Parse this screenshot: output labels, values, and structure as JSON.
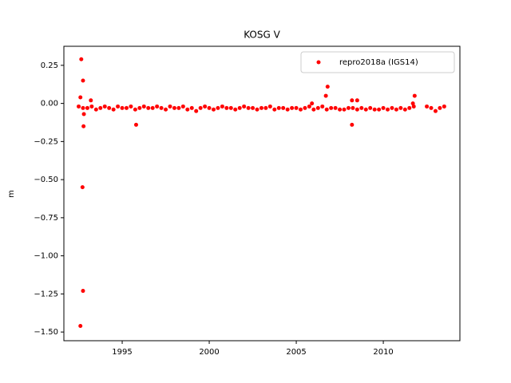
{
  "chart_data": {
    "type": "scatter",
    "title": "KOSG V",
    "y_label": "m",
    "xlim": [
      1991.65,
      2014.4
    ],
    "ylim": [
      -1.557,
      0.375
    ],
    "xticks": [
      1995,
      2000,
      2005,
      2010
    ],
    "yticks": [
      0.25,
      {
        "value": 0,
        "label": "0.00"
      },
      {
        "value": -0.25,
        "label": "−0.25"
      },
      {
        "value": -0.5,
        "label": "−0.50"
      },
      {
        "value": -0.75,
        "label": "−0.75"
      },
      {
        "value": -1,
        "label": "−1.00"
      },
      {
        "value": -1.25,
        "label": "−1.25"
      },
      {
        "value": -1.5,
        "label": "−1.50"
      }
    ],
    "legend": "upper right",
    "series": [
      {
        "name": "repro2018a (IGS14)",
        "color": "#ff0000",
        "x": [
          1992.5,
          1992.75,
          1993,
          1993.25,
          1993.5,
          1993.75,
          1994,
          1994.25,
          1994.5,
          1994.75,
          1995,
          1995.25,
          1995.5,
          1995.75,
          1996,
          1996.25,
          1996.5,
          1996.75,
          1997,
          1997.25,
          1997.5,
          1997.75,
          1998,
          1998.25,
          1998.5,
          1998.75,
          1999,
          1999.25,
          1999.5,
          1999.75,
          2000,
          2000.25,
          2000.5,
          2000.75,
          2001,
          2001.25,
          2001.5,
          2001.75,
          2002,
          2002.25,
          2002.5,
          2002.75,
          2003,
          2003.25,
          2003.5,
          2003.75,
          2004,
          2004.25,
          2004.5,
          2004.75,
          2005,
          2005.25,
          2005.5,
          2005.75,
          2006,
          2006.25,
          2006.5,
          2006.75,
          2007,
          2007.25,
          2007.5,
          2007.75,
          2008,
          2008.25,
          2008.5,
          2008.75,
          2009,
          2009.25,
          2009.5,
          2009.75,
          2010,
          2010.25,
          2010.5,
          2010.75,
          2011,
          2011.25,
          2011.5,
          2011.75,
          2012.5,
          2012.75,
          2013,
          2013.25,
          2013.5,
          1992.65,
          1992.75,
          1992.72,
          1992.75,
          1992.6,
          1992.78,
          1995.8,
          2008.2,
          2006.8,
          2006.7,
          2011.8,
          1992.6,
          1992.8,
          1993.2,
          2008.2,
          2008.5,
          2005.9,
          2011.7
        ],
        "y": [
          -0.02,
          -0.03,
          -0.03,
          -0.02,
          -0.04,
          -0.03,
          -0.02,
          -0.03,
          -0.04,
          -0.02,
          -0.03,
          -0.03,
          -0.02,
          -0.04,
          -0.03,
          -0.02,
          -0.03,
          -0.03,
          -0.02,
          -0.03,
          -0.04,
          -0.02,
          -0.03,
          -0.03,
          -0.02,
          -0.04,
          -0.03,
          -0.05,
          -0.03,
          -0.02,
          -0.03,
          -0.04,
          -0.03,
          -0.02,
          -0.03,
          -0.03,
          -0.04,
          -0.03,
          -0.02,
          -0.03,
          -0.03,
          -0.04,
          -0.03,
          -0.03,
          -0.02,
          -0.04,
          -0.03,
          -0.03,
          -0.04,
          -0.03,
          -0.03,
          -0.04,
          -0.03,
          -0.02,
          -0.04,
          -0.03,
          -0.02,
          -0.04,
          -0.03,
          -0.03,
          -0.04,
          -0.04,
          -0.03,
          -0.03,
          -0.04,
          -0.03,
          -0.04,
          -0.03,
          -0.04,
          -0.04,
          -0.03,
          -0.04,
          -0.03,
          -0.04,
          -0.03,
          -0.04,
          -0.03,
          -0.02,
          -0.02,
          -0.03,
          -0.05,
          -0.03,
          -0.02,
          0.29,
          0.15,
          -0.55,
          -1.23,
          -1.46,
          -0.15,
          -0.14,
          -0.14,
          0.11,
          0.05,
          0.05,
          0.04,
          -0.07,
          0.02,
          0.02,
          0.02,
          0.0,
          0.0
        ]
      }
    ]
  }
}
